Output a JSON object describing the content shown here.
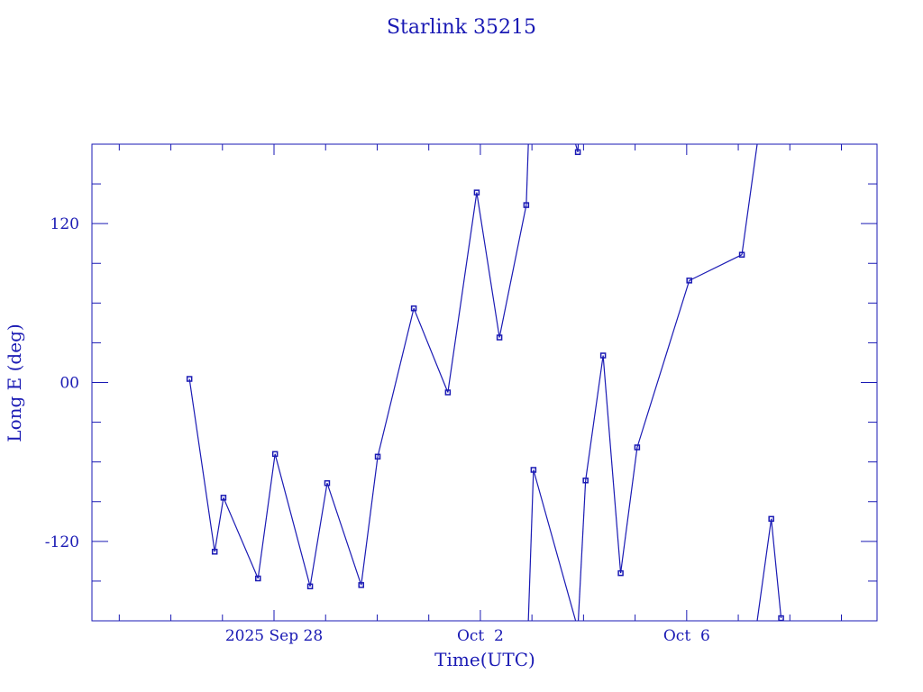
{
  "chart_data": {
    "type": "line",
    "title": "Starlink 35215",
    "xlabel": "Time(UTC)",
    "ylabel": "Long E (deg)",
    "x_units": "days since 2025 Sep 28 00:00 UTC",
    "xlim": [
      -3.53,
      11.69
    ],
    "ylim": [
      -180,
      180
    ],
    "x_ticks": [
      {
        "value": 0,
        "label": "2025 Sep 28"
      },
      {
        "value": 4,
        "label": "Oct  2"
      },
      {
        "value": 8,
        "label": "Oct  6"
      }
    ],
    "y_ticks": [
      {
        "value": 120,
        "label": "120"
      },
      {
        "value": 0,
        "label": "00"
      },
      {
        "value": -120,
        "label": "-120"
      }
    ],
    "longitude_wraps": true,
    "color": "#1a1ab4",
    "series": [
      {
        "name": "Starlink 35215",
        "x": [
          -1.64,
          -1.15,
          -0.98,
          -0.31,
          0.02,
          0.7,
          1.03,
          1.69,
          2.01,
          2.71,
          3.37,
          3.93,
          4.37,
          4.89,
          5.03,
          5.89,
          6.04,
          6.38,
          6.72,
          7.04,
          8.05,
          9.07,
          9.64,
          9.83
        ],
        "y": [
          2.7,
          -127.8,
          -87,
          -148,
          -54,
          -154,
          -76,
          -153,
          -56,
          56,
          -7.5,
          143.5,
          34,
          134,
          -66,
          174,
          -74,
          20.4,
          -144,
          -49,
          77,
          96.5,
          -103,
          -178
        ]
      }
    ]
  }
}
